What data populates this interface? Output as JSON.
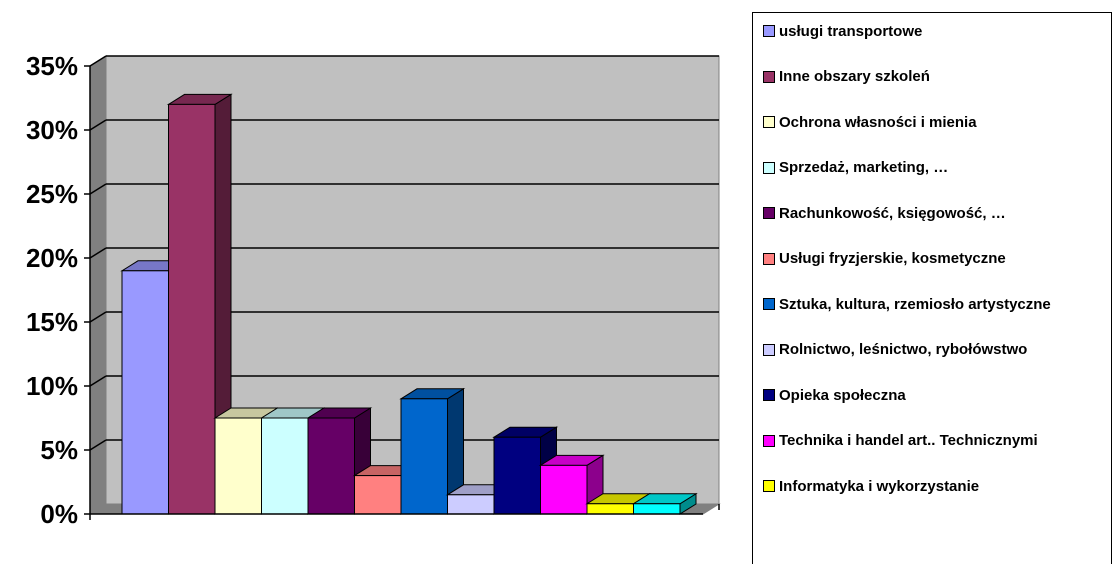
{
  "chart_data": {
    "type": "bar",
    "three_d": true,
    "y_ticks": [
      "0%",
      "5%",
      "10%",
      "15%",
      "20%",
      "25%",
      "30%",
      "35%"
    ],
    "ylim": [
      0,
      35
    ],
    "grid": true,
    "legend_position": "right",
    "series": [
      {
        "name": "usługi transportowe",
        "value": 19,
        "color": "#9999ff"
      },
      {
        "name": "Inne obszary szkoleń",
        "value": 32,
        "color": "#993366"
      },
      {
        "name": "Ochrona własności i mienia",
        "value": 7.5,
        "color": "#ffffcc"
      },
      {
        "name": "Sprzedaż, marketing, …",
        "value": 7.5,
        "color": "#ccffff"
      },
      {
        "name": "Rachunkowość, księgowość, …",
        "value": 7.5,
        "color": "#660066"
      },
      {
        "name": "Usługi fryzjerskie, kosmetyczne",
        "value": 3,
        "color": "#ff8080"
      },
      {
        "name": "Sztuka, kultura, rzemiosło artystyczne",
        "value": 9,
        "color": "#0066cc"
      },
      {
        "name": "Rolnictwo, leśnictwo, rybołówstwo",
        "value": 1.5,
        "color": "#ccccff"
      },
      {
        "name": "Opieka społeczna",
        "value": 6,
        "color": "#000080"
      },
      {
        "name": "Technika i handel art.. Technicznymi",
        "value": 3.8,
        "color": "#ff00ff"
      },
      {
        "name": "Informatyka i wykorzystanie",
        "value": 0.8,
        "color": "#ffff00"
      },
      {
        "name": "",
        "value": 0.8,
        "color": "#00ffff"
      }
    ]
  }
}
